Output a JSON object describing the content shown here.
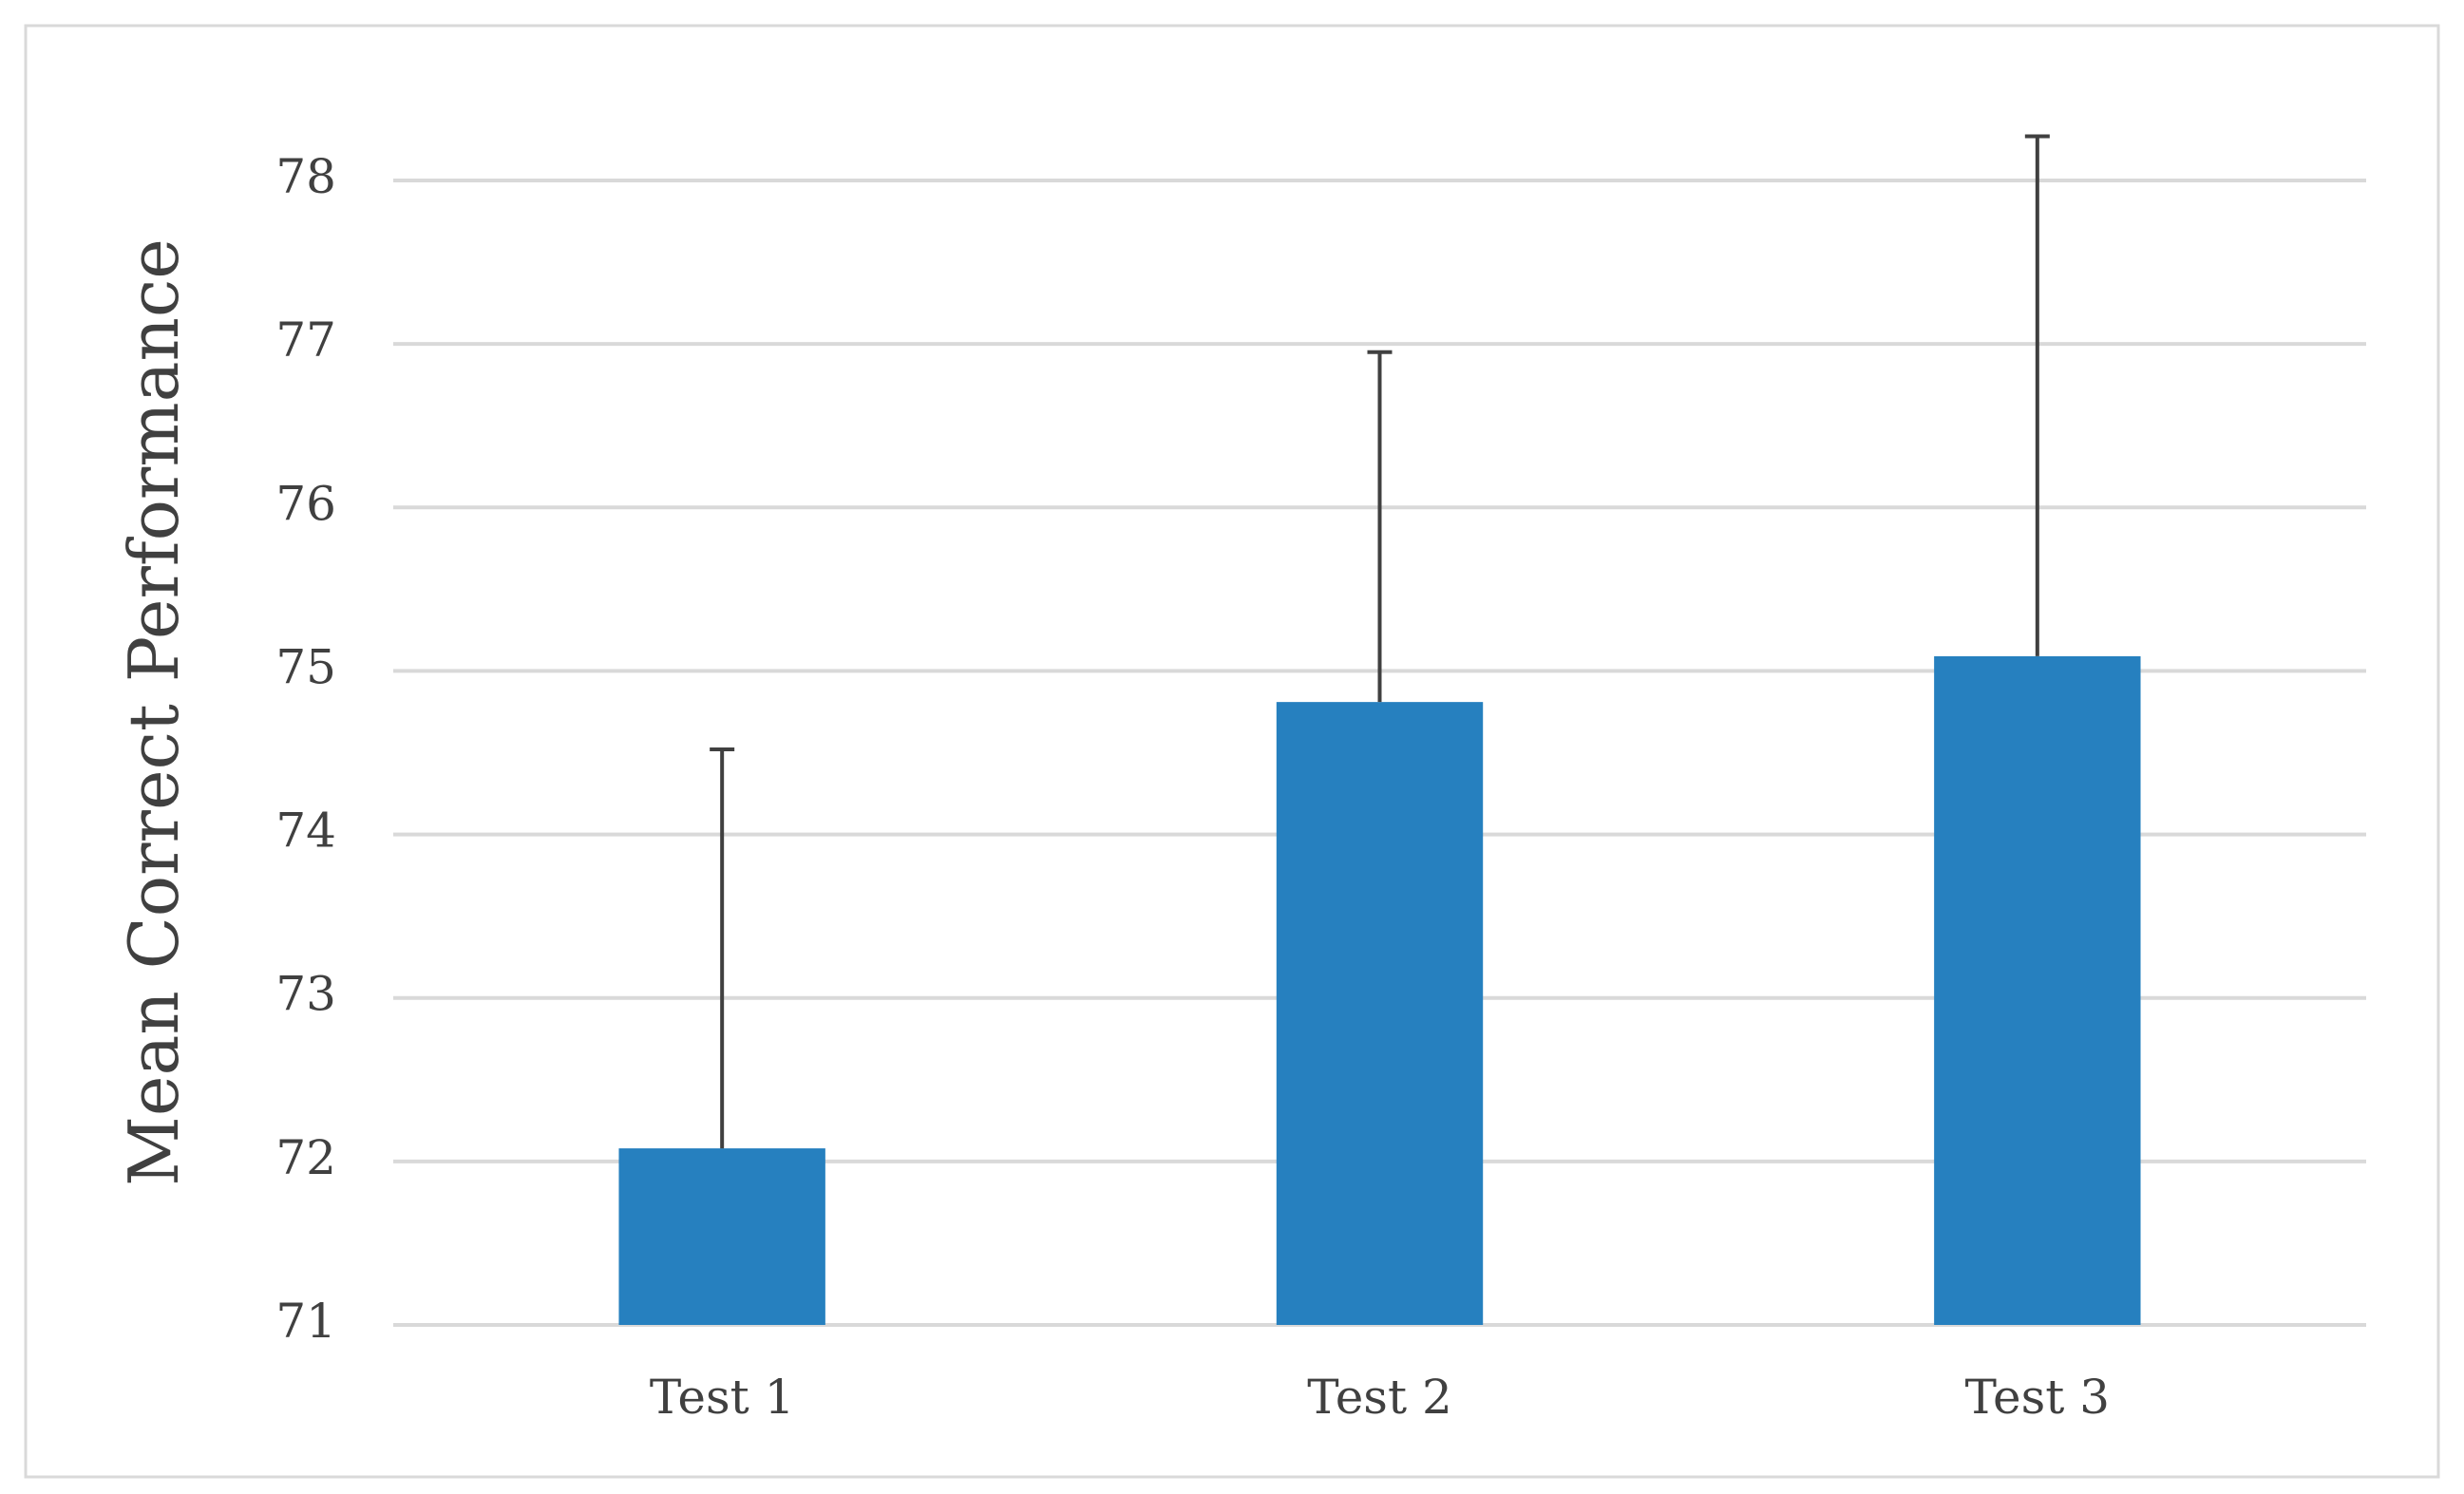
{
  "chart_data": {
    "type": "bar",
    "y_label": "Mean Correct Performance",
    "categories": [
      "Test 1",
      "Test 2",
      "Test 3"
    ],
    "values": [
      72.08,
      74.81,
      75.09
    ],
    "errors": [
      2.44,
      2.14,
      3.18
    ],
    "color": "#2680bf",
    "ylim": [
      71,
      78
    ],
    "yticks": [
      71,
      72,
      73,
      74,
      75,
      76,
      77,
      78
    ],
    "grid": true
  }
}
